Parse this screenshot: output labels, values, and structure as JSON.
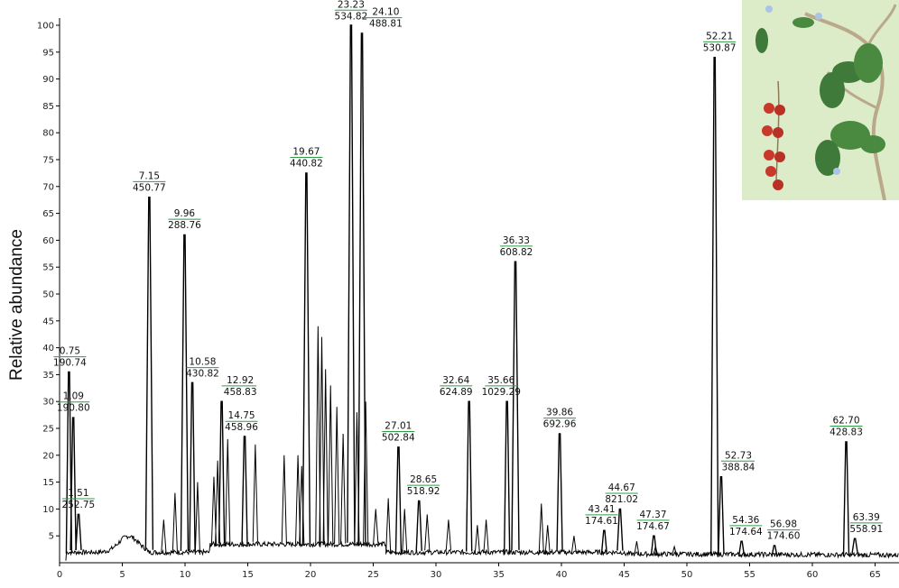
{
  "chart_data": {
    "type": "line",
    "ylabel": "Relative abundance",
    "xlabel": "",
    "xlim": [
      0,
      67
    ],
    "ylim": [
      0,
      100
    ],
    "xticks": [
      0,
      5,
      10,
      15,
      20,
      25,
      30,
      35,
      40,
      45,
      50,
      55,
      60,
      65
    ],
    "yticks": [
      5,
      10,
      15,
      20,
      25,
      30,
      35,
      40,
      45,
      50,
      55,
      60,
      65,
      70,
      75,
      80,
      85,
      90,
      95,
      100
    ],
    "peaks": [
      {
        "rt": "0.75",
        "mz": "190.74",
        "x": 0.75,
        "y": 35.5,
        "lx": 0.82,
        "ly": 36.8
      },
      {
        "rt": "1.09",
        "mz": "190.80",
        "x": 1.09,
        "y": 27,
        "lx": 1.1,
        "ly": 28.4
      },
      {
        "rt": "1.51",
        "mz": "252.75",
        "x": 1.51,
        "y": 9,
        "lx": 1.5,
        "ly": 10.4
      },
      {
        "rt": "7.15",
        "mz": "450.77",
        "x": 7.15,
        "y": 68,
        "lx": 7.15,
        "ly": 69.4
      },
      {
        "rt": "9.96",
        "mz": "288.76",
        "x": 9.96,
        "y": 61,
        "lx": 9.96,
        "ly": 62.4
      },
      {
        "rt": "10.58",
        "mz": "430.82",
        "x": 10.58,
        "y": 33.5,
        "lx": 11.4,
        "ly": 34.8
      },
      {
        "rt": "12.92",
        "mz": "458.83",
        "x": 12.92,
        "y": 30,
        "lx": 14.4,
        "ly": 31.4
      },
      {
        "rt": "14.75",
        "mz": "458.96",
        "x": 14.75,
        "y": 23.5,
        "lx": 14.5,
        "ly": 24.8
      },
      {
        "rt": "19.67",
        "mz": "440.82",
        "x": 19.67,
        "y": 72.5,
        "lx": 19.67,
        "ly": 73.9
      },
      {
        "rt": "23.23",
        "mz": "534.82",
        "x": 23.23,
        "y": 100,
        "lx": 23.23,
        "ly": 101.3
      },
      {
        "rt": "24.10",
        "mz": "488.81",
        "x": 24.1,
        "y": 98.5,
        "lx": 26.0,
        "ly": 99.9
      },
      {
        "rt": "27.01",
        "mz": "502.84",
        "x": 27.01,
        "y": 21.5,
        "lx": 27.0,
        "ly": 22.9
      },
      {
        "rt": "28.65",
        "mz": "518.92",
        "x": 28.65,
        "y": 11.5,
        "lx": 29.0,
        "ly": 12.9
      },
      {
        "rt": "32.64",
        "mz": "624.89",
        "x": 32.64,
        "y": 30,
        "lx": 31.6,
        "ly": 31.4
      },
      {
        "rt": "35.66",
        "mz": "1029.29",
        "x": 35.66,
        "y": 30,
        "lx": 35.2,
        "ly": 31.4
      },
      {
        "rt": "36.33",
        "mz": "608.82",
        "x": 36.33,
        "y": 56,
        "lx": 36.4,
        "ly": 57.4
      },
      {
        "rt": "39.86",
        "mz": "692.96",
        "x": 39.86,
        "y": 24,
        "lx": 39.86,
        "ly": 25.4
      },
      {
        "rt": "43.41",
        "mz": "174.61",
        "x": 43.41,
        "y": 6,
        "lx": 43.2,
        "ly": 7.4
      },
      {
        "rt": "44.67",
        "mz": "821.02",
        "x": 44.67,
        "y": 10,
        "lx": 44.8,
        "ly": 11.4
      },
      {
        "rt": "47.37",
        "mz": "174.67",
        "x": 47.37,
        "y": 5,
        "lx": 47.3,
        "ly": 6.4
      },
      {
        "rt": "52.21",
        "mz": "530.87",
        "x": 52.21,
        "y": 94,
        "lx": 52.6,
        "ly": 95.4
      },
      {
        "rt": "52.73",
        "mz": "388.84",
        "x": 52.73,
        "y": 16,
        "lx": 54.1,
        "ly": 17.4
      },
      {
        "rt": "54.36",
        "mz": "174.64",
        "x": 54.36,
        "y": 4,
        "lx": 54.7,
        "ly": 5.4
      },
      {
        "rt": "56.98",
        "mz": "174.60",
        "x": 56.98,
        "y": 3.2,
        "lx": 57.7,
        "ly": 4.6
      },
      {
        "rt": "62.70",
        "mz": "428.83",
        "x": 62.7,
        "y": 22.5,
        "lx": 62.7,
        "ly": 23.9
      },
      {
        "rt": "63.39",
        "mz": "558.91",
        "x": 63.39,
        "y": 4.5,
        "lx": 64.3,
        "ly": 5.9
      }
    ]
  }
}
